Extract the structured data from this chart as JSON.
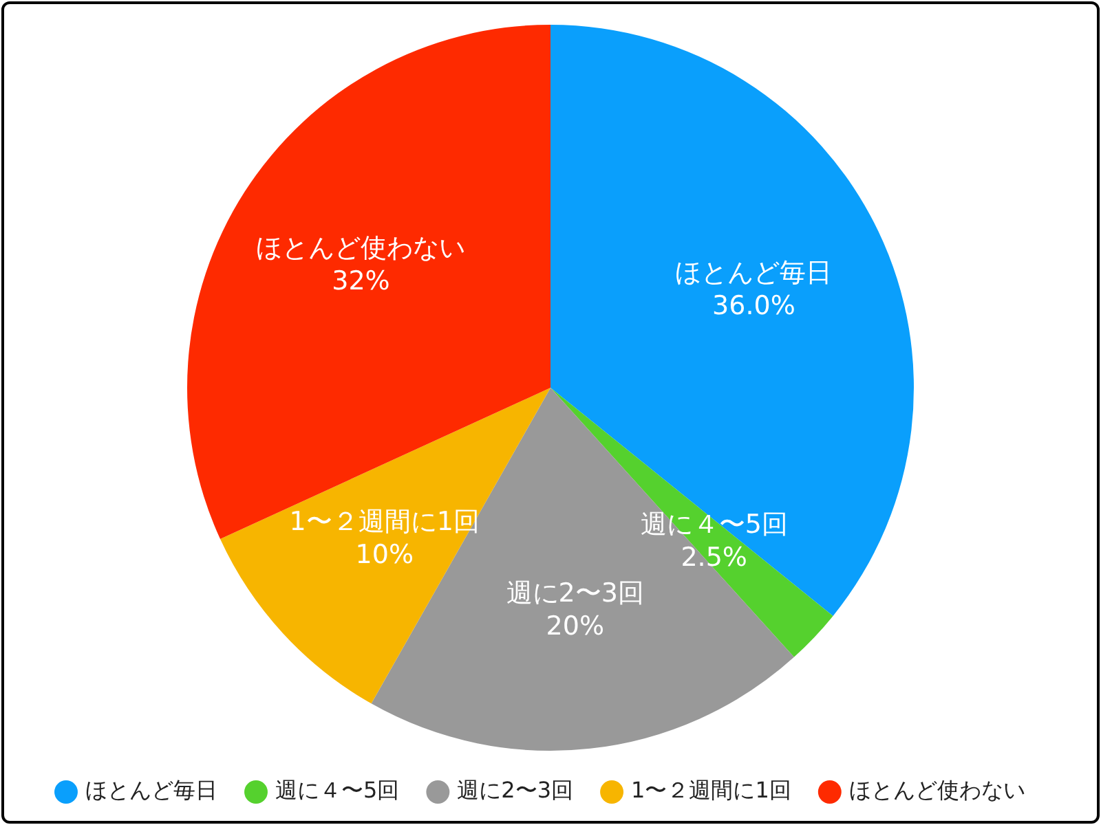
{
  "chart_data": {
    "type": "pie",
    "categories": [
      "ほとんど毎日",
      "週に４〜5回",
      "週に2〜3回",
      "1〜２週間に1回",
      "ほとんど使わない"
    ],
    "values": [
      36.0,
      2.5,
      20,
      10,
      32
    ],
    "value_labels": [
      "36.0%",
      "2.5%",
      "20%",
      "10%",
      "32%"
    ],
    "colors": [
      "#0a9ffc",
      "#55d12e",
      "#999999",
      "#f7b500",
      "#fe2a00"
    ],
    "legend": "bottom"
  }
}
